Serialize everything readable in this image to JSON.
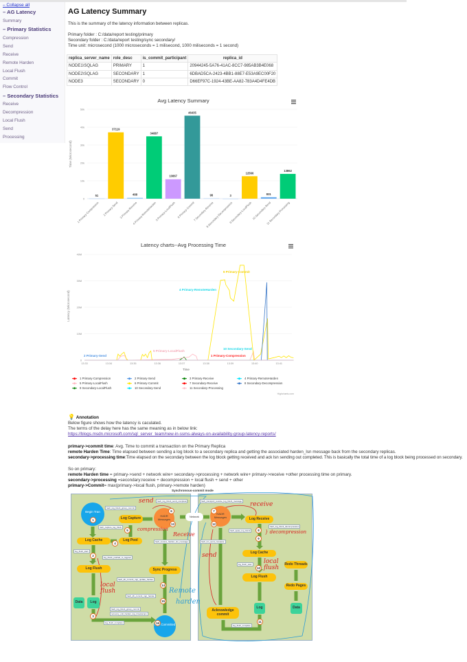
{
  "sidebar": {
    "collapse_label": "– Collapse all",
    "sections": [
      {
        "title": "– AG Latency",
        "items": [
          "Summary"
        ]
      },
      {
        "title": "– Primary Statistics",
        "items": [
          "Compression",
          "Send",
          "Receive",
          "Remote Harden",
          "Local Flush",
          "Commit",
          "Flow Control"
        ]
      },
      {
        "title": "– Secondary Statistics",
        "items": [
          "Receive",
          "Decompression",
          "Local Flush",
          "Send",
          "Processing"
        ]
      }
    ]
  },
  "main": {
    "title": "AG Latency Summary",
    "intro": "This is the summary of the latency information between replicas.",
    "primary_folder": "Primary folder : C:/data/report testing/primary",
    "secondary_folder": "Secondary folder : C:/data/report testing/sync secondary/",
    "time_unit": "Time unit: microsecond (1000 microseconds = 1 milisecond, 1000 miliseconds = 1 second)",
    "table": {
      "headers": [
        "replica_server_name",
        "role_desc",
        "is_commit_participant",
        "replica_id"
      ],
      "rows": [
        [
          "NODE1\\SQLAG",
          "PRIMARY",
          "1",
          "20944245-5A76-41AC-8CC7-985AB3B4E068"
        ],
        [
          "NODE2\\SQLAG",
          "SECONDARY",
          "1",
          "6DBAD5CA-2423-4BB1-88E7-E53A9EC00F20"
        ],
        [
          "NODE3",
          "SECONDARY",
          "0",
          "D66EF97C-1924-43BE-AA82-783A4D4FE4DB"
        ]
      ]
    }
  },
  "chart_data": [
    {
      "type": "bar",
      "title": "Avg Latency Summary",
      "ylabel": "Time (Microsecond)",
      "xlabel": "",
      "ylim": [
        0,
        50000
      ],
      "yticks": [
        "0",
        "10k",
        "20k",
        "30k",
        "40k",
        "50k"
      ],
      "categories": [
        "1 Primary-Compression",
        "2 Primary-Send",
        "3 Primary-Receive",
        "4 Primary-RemoteHarden",
        "5 Primary-LocalFlush",
        "6 Primary-Commit",
        "7 Secondary-Receive",
        "8 Secondary-Decompression",
        "9 Secondary-LocalFlush",
        "10 Secondary-Send",
        "11 Secondary-Processing"
      ],
      "values": [
        51,
        37119,
        488,
        34887,
        10867,
        46435,
        98,
        3,
        12566,
        831,
        13862
      ],
      "colors": [
        "#7cb5ec",
        "#ffcc00",
        "#90c8f4",
        "#00cc77",
        "#cc99ff",
        "#339999",
        "#7cb5ec",
        "#7cb5ec",
        "#ffcc00",
        "#66aaee",
        "#00cc77"
      ],
      "menu_icon": "hamburger-icon"
    },
    {
      "type": "line",
      "title": "Latency charts--Avg Processing Time",
      "ylabel": "Latency (Microsecond)",
      "xlabel": "Time",
      "ylim": [
        0,
        40
      ],
      "y_unit": "M",
      "yticks": [
        "0",
        "10M",
        "20M",
        "30M",
        "40M"
      ],
      "xticks": [
        "13:33",
        "13:34",
        "13:35",
        "13:36",
        "13:37",
        "13:38",
        "13:39",
        "13:40",
        "13:41"
      ],
      "x_unit": "minutes after 13:33",
      "series": [
        {
          "name": "1 Primary-Compression",
          "color": "#ff0000",
          "points": [
            [
              0,
              0
            ],
            [
              8.6,
              0
            ]
          ]
        },
        {
          "name": "2 Primary-Send",
          "color": "#4a90e2",
          "points": [
            [
              0,
              0
            ],
            [
              7.2,
              0
            ]
          ]
        },
        {
          "name": "3 Primary-Receive",
          "color": "#008000",
          "points": [
            [
              3.9,
              0
            ],
            [
              4.1,
              1.2
            ],
            [
              4.2,
              0
            ],
            [
              6.9,
              0
            ],
            [
              7.1,
              0
            ]
          ]
        },
        {
          "name": "4 Primary-RemoteHarden",
          "color": "#00e5ff",
          "points": [
            [
              3.6,
              0
            ],
            [
              4.6,
              0
            ]
          ]
        },
        {
          "name": "5 Primary-LocalFlush",
          "color": "#ffb6c1",
          "points": [
            [
              1.35,
              0
            ],
            [
              1.5,
              1.5
            ],
            [
              1.65,
              1.8
            ],
            [
              1.75,
              0
            ],
            [
              3.6,
              0.3
            ],
            [
              4.0,
              0.8
            ],
            [
              4.3,
              1.2
            ],
            [
              4.45,
              2.3
            ],
            [
              4.6,
              1.5
            ],
            [
              4.65,
              0
            ],
            [
              6.8,
              0
            ],
            [
              6.95,
              3.2
            ],
            [
              7.0,
              0
            ]
          ]
        },
        {
          "name": "6 Primary-Commit",
          "color": "#ffe500",
          "points": [
            [
              0,
              0
            ],
            [
              1.32,
              0
            ],
            [
              1.38,
              2.3
            ],
            [
              1.46,
              1.5
            ],
            [
              1.53,
              2.3
            ],
            [
              1.63,
              3
            ],
            [
              1.72,
              0.6
            ],
            [
              1.79,
              0
            ],
            [
              2.31,
              0
            ],
            [
              2.38,
              2.2
            ],
            [
              2.45,
              1.5
            ],
            [
              2.51,
              2.3
            ],
            [
              2.59,
              1
            ],
            [
              2.66,
              2.8
            ],
            [
              2.73,
              3.5
            ],
            [
              2.78,
              0
            ],
            [
              5.08,
              0
            ],
            [
              5.6,
              30.2
            ],
            [
              5.77,
              30.4
            ],
            [
              5.81,
              28.6
            ],
            [
              5.96,
              26.4
            ],
            [
              6.0,
              23.5
            ],
            [
              6.14,
              22.3
            ],
            [
              6.4,
              35.9
            ],
            [
              6.56,
              35.9
            ],
            [
              6.97,
              0
            ],
            [
              7.25,
              2.3
            ],
            [
              7.53,
              15.8
            ],
            [
              7.56,
              0.5
            ],
            [
              7.8,
              1
            ],
            [
              8.0,
              1.5
            ],
            [
              8.1,
              1
            ],
            [
              8.2,
              1.6
            ],
            [
              8.3,
              1
            ],
            [
              8.4,
              1.7
            ],
            [
              8.5,
              1.1
            ],
            [
              8.6,
              0.9
            ]
          ]
        },
        {
          "name": "7 Secondary-Receive",
          "color": "#ff0000",
          "points": [
            [
              0,
              0
            ],
            [
              8.6,
              0
            ]
          ]
        },
        {
          "name": "8 Secondary-Decompression",
          "color": "#3a78c8",
          "points": [
            [
              7.27,
              0
            ],
            [
              7.5,
              29.4
            ],
            [
              7.52,
              0
            ]
          ]
        },
        {
          "name": "9 Secondary-LocalFlush",
          "color": "#1a8a1a",
          "points": [
            [
              6.7,
              0
            ],
            [
              6.95,
              0
            ]
          ]
        },
        {
          "name": "10 Secondary-Send",
          "color": "#00e5ff",
          "points": [
            [
              0,
              0
            ],
            [
              8.6,
              0
            ]
          ]
        },
        {
          "name": "11 Secondary-Processing",
          "color": "#ffc0cb",
          "points": [
            [
              0,
              0
            ],
            [
              8.6,
              0
            ]
          ]
        }
      ],
      "annotations": [
        "6 Primary-Commit",
        "4 Primary-RemoteHarden",
        "2 Primary-Send",
        "5 Primary-LocalFlush",
        "10 Secondary-Send",
        "1 Primary-Compression"
      ],
      "credit": "Highcharts.com",
      "menu_icon": "hamburger-icon"
    }
  ],
  "annotation": {
    "icon": "lightbulb-icon",
    "heading": "Annotation",
    "line1": "Below figure shows how the latency is caculated.",
    "line2": "The terms of the delay here has the same meaning as in below link:",
    "link": "https://blogs.msdn.microsoft.com/sql_server_team/new-in-ssms-always-on-availability-group-latency-reports/",
    "defs": [
      {
        "term": "primary->commit time",
        "text": ": Avg. Time to commit a transaction on the Primary Replica"
      },
      {
        "term": "remote Harden Time",
        "text": ": Time elapsed between sending a log block to a secondary replica and getting the associated harden_lsn message back from the secondary replicas."
      },
      {
        "term": "secondary->processing time",
        "text": ":Time elapsed on the secondary between the log block getting received and ack lsn sending out completed. This is basically the total time of a log block being processed on secondary."
      }
    ],
    "so_on_primary": "So on primary:",
    "formulas": [
      {
        "term": "remote Harden time",
        "text": " = primary->send + network wire+ secondary->processing + network wire+ primary->receive +other processing time on primary."
      },
      {
        "term": "secondary->processing",
        "text": " =secondary:receive + decompression + local flush + send + other"
      },
      {
        "term": "primary->Commit",
        "text": "= max(primary->local flush, primary->remote harden)"
      }
    ]
  },
  "diagram": {
    "title": "Synchronous-commit mode",
    "network": "Network",
    "left": {
      "begin_tran": "Begin Tran",
      "log_capture": "Log Capture",
      "hadr_messages": "HADR Messages",
      "log_cache": "Log Cache",
      "log_pool": "Log Pool",
      "log_flush": "Log Flush",
      "sync_progress": "Sync Progress",
      "data": "Data",
      "log": "Log",
      "tran_committed": "Tran Committed"
    },
    "right": {
      "hadr_messages": "HADR Messages",
      "log_receive": "Log Receive",
      "log_cache": "Log Cache",
      "redo_threads": "Redo Threads",
      "log_flush": "Log Flush",
      "redo_pages": "Redo Pages",
      "log": "Log",
      "data": "Data",
      "ack_commit": "Acknowledge commit"
    },
    "numbers": [
      "1",
      "5",
      "4",
      "6",
      "13",
      "2",
      "14",
      "15",
      "3",
      "16",
      "7",
      "12",
      "8",
      "9",
      "10",
      "11"
    ],
    "hooks": [
      "hadr_log_block_send_complete",
      "hadr_log_block_group_commit",
      "hadr_capture_log_block",
      "log_flush_start",
      "log_block_pushed_to_logpool",
      "hadr_receive_harden_lsn_message",
      "hadr_db_commit_mgr_update_harden",
      "hadr_db_commit_mgr_harden",
      "hadr_log_block_group_commit",
      "recovery_unit_harden_log_timestamps",
      "log_flush_complete",
      "hadr_transport_receive_log_block_message",
      "hadr_log_block_decompression",
      "hadr_apply_log_block",
      "hadr_lsn_send_complete",
      "log_flush_start",
      "log_flush_complete"
    ],
    "handwritten": [
      "send",
      "compression",
      "Receive",
      "local flush",
      "Remote",
      "harden",
      "receive",
      "} decompression",
      "send",
      "local flush"
    ]
  }
}
